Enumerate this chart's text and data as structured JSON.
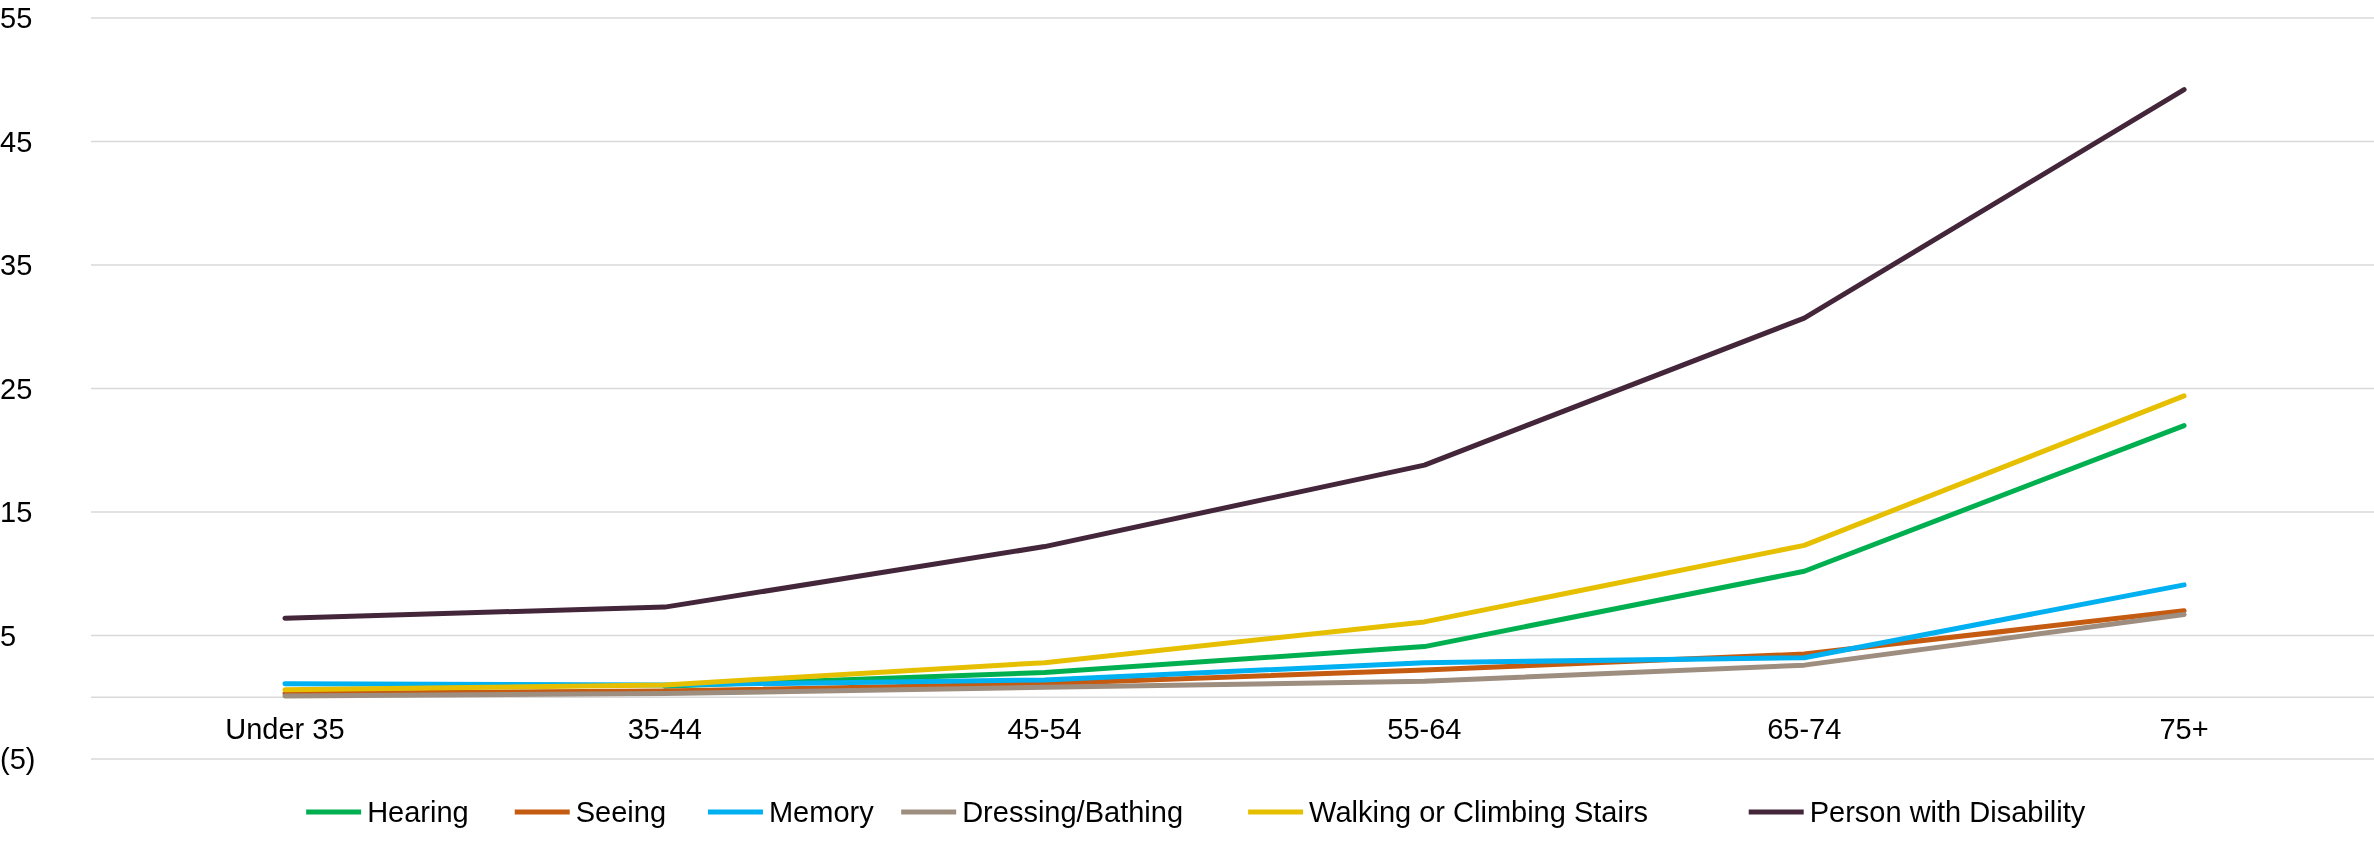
{
  "chart_data": {
    "type": "line",
    "categories": [
      "Under 35",
      "35-44",
      "45-54",
      "55-64",
      "65-74",
      "75+"
    ],
    "series": [
      {
        "name": "Hearing",
        "color": "#00b050",
        "values": [
          null,
          0.9,
          2.0,
          4.1,
          10.2,
          22.0
        ]
      },
      {
        "name": "Seeing",
        "color": "#c55a11",
        "values": [
          0.3,
          0.5,
          1.1,
          2.2,
          3.5,
          7.0
        ]
      },
      {
        "name": "Memory",
        "color": "#00b0f0",
        "values": [
          1.1,
          1.0,
          1.4,
          2.8,
          3.2,
          9.1
        ]
      },
      {
        "name": "Dressing/Bathing",
        "color": "#9e8e80",
        "values": [
          0.1,
          0.3,
          0.8,
          1.3,
          2.6,
          6.7
        ]
      },
      {
        "name": "Walking or Climbing Stairs",
        "color": "#e6c000",
        "values": [
          0.6,
          1.0,
          2.8,
          6.1,
          12.3,
          24.4
        ]
      },
      {
        "name": "Person with Disability",
        "color": "#44263a",
        "values": [
          6.4,
          7.3,
          12.2,
          18.8,
          30.7,
          49.2
        ]
      }
    ],
    "ylim": [
      -5,
      55
    ],
    "yticks": [
      {
        "value": -5,
        "label": "(5)"
      },
      {
        "value": 0,
        "label": null
      },
      5,
      15,
      25,
      35,
      45,
      55
    ],
    "grid": "y",
    "legend": "bottom",
    "marker": "none",
    "line_style": "solid"
  }
}
